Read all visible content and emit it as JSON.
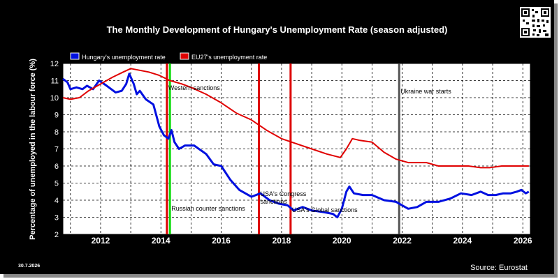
{
  "date_stamp": "30.7.2026",
  "source": "Source: Eurostat",
  "colors": {
    "hungary": "#0010e0",
    "eu27": "#e00000",
    "sanction_red": "#dd0000",
    "sanction_green": "#11dd11",
    "war_gray": "#555555"
  },
  "chart_data": {
    "type": "line",
    "title": "The Monthly Development of Hungary's Unemployment Rate (season adjusted)",
    "ylabel": "Percentage of unemployed in the labour force (%)",
    "xlabel": "",
    "xlim": [
      2010.75,
      2026.25
    ],
    "ylim": [
      2,
      12
    ],
    "grid": true,
    "legend_position": "top-left",
    "x_ticks": [
      "2012",
      "2014",
      "2016",
      "2018",
      "2020",
      "2022",
      "2024",
      "2026"
    ],
    "y_ticks": [
      "2",
      "3",
      "4",
      "5",
      "6",
      "7",
      "8",
      "9",
      "10",
      "11",
      "12"
    ],
    "series": [
      {
        "name": "Hungary's unemployment rate",
        "color": "#0010e0",
        "points": [
          [
            2010.75,
            11.1
          ],
          [
            2010.9,
            10.9
          ],
          [
            2011.0,
            10.5
          ],
          [
            2011.2,
            10.6
          ],
          [
            2011.4,
            10.5
          ],
          [
            2011.55,
            10.7
          ],
          [
            2011.75,
            10.5
          ],
          [
            2011.95,
            11.0
          ],
          [
            2012.2,
            10.7
          ],
          [
            2012.5,
            10.3
          ],
          [
            2012.7,
            10.4
          ],
          [
            2012.85,
            10.8
          ],
          [
            2012.95,
            11.4
          ],
          [
            2013.1,
            10.8
          ],
          [
            2013.2,
            10.2
          ],
          [
            2013.3,
            10.4
          ],
          [
            2013.5,
            9.9
          ],
          [
            2013.75,
            9.6
          ],
          [
            2013.95,
            8.3
          ],
          [
            2014.1,
            7.8
          ],
          [
            2014.25,
            7.6
          ],
          [
            2014.35,
            8.1
          ],
          [
            2014.45,
            7.4
          ],
          [
            2014.6,
            7.0
          ],
          [
            2014.8,
            7.2
          ],
          [
            2015.1,
            7.2
          ],
          [
            2015.5,
            6.7
          ],
          [
            2015.75,
            6.1
          ],
          [
            2016.0,
            6.0
          ],
          [
            2016.3,
            5.2
          ],
          [
            2016.6,
            4.6
          ],
          [
            2017.0,
            4.2
          ],
          [
            2017.3,
            4.4
          ],
          [
            2017.6,
            4.0
          ],
          [
            2017.9,
            3.8
          ],
          [
            2018.2,
            3.7
          ],
          [
            2018.4,
            3.4
          ],
          [
            2018.7,
            3.6
          ],
          [
            2019.0,
            3.4
          ],
          [
            2019.4,
            3.3
          ],
          [
            2019.7,
            3.2
          ],
          [
            2019.85,
            3.0
          ],
          [
            2020.0,
            3.5
          ],
          [
            2020.15,
            4.5
          ],
          [
            2020.25,
            4.8
          ],
          [
            2020.4,
            4.4
          ],
          [
            2020.7,
            4.3
          ],
          [
            2021.0,
            4.3
          ],
          [
            2021.4,
            4.0
          ],
          [
            2021.8,
            3.9
          ],
          [
            2022.0,
            3.7
          ],
          [
            2022.2,
            3.5
          ],
          [
            2022.5,
            3.6
          ],
          [
            2022.8,
            3.9
          ],
          [
            2023.2,
            3.9
          ],
          [
            2023.6,
            4.1
          ],
          [
            2023.95,
            4.4
          ],
          [
            2024.3,
            4.3
          ],
          [
            2024.6,
            4.5
          ],
          [
            2024.85,
            4.3
          ],
          [
            2025.1,
            4.3
          ],
          [
            2025.35,
            4.4
          ],
          [
            2025.6,
            4.4
          ],
          [
            2025.8,
            4.5
          ],
          [
            2025.95,
            4.6
          ],
          [
            2026.1,
            4.4
          ],
          [
            2026.2,
            4.5
          ]
        ]
      },
      {
        "name": "EU27's unemployment rate",
        "color": "#e00000",
        "points": [
          [
            2010.75,
            10.0
          ],
          [
            2011.0,
            9.9
          ],
          [
            2011.3,
            10.0
          ],
          [
            2011.6,
            10.4
          ],
          [
            2012.0,
            10.8
          ],
          [
            2012.4,
            11.2
          ],
          [
            2012.75,
            11.5
          ],
          [
            2013.0,
            11.7
          ],
          [
            2013.3,
            11.6
          ],
          [
            2013.6,
            11.5
          ],
          [
            2013.95,
            11.3
          ],
          [
            2014.3,
            11.0
          ],
          [
            2014.7,
            10.8
          ],
          [
            2015.0,
            10.6
          ],
          [
            2015.5,
            10.2
          ],
          [
            2016.0,
            9.7
          ],
          [
            2016.5,
            9.1
          ],
          [
            2017.0,
            8.7
          ],
          [
            2017.5,
            8.1
          ],
          [
            2018.0,
            7.6
          ],
          [
            2018.5,
            7.3
          ],
          [
            2019.0,
            7.0
          ],
          [
            2019.5,
            6.7
          ],
          [
            2019.95,
            6.5
          ],
          [
            2020.15,
            7.0
          ],
          [
            2020.35,
            7.6
          ],
          [
            2020.6,
            7.5
          ],
          [
            2021.0,
            7.4
          ],
          [
            2021.4,
            6.8
          ],
          [
            2021.8,
            6.4
          ],
          [
            2022.2,
            6.2
          ],
          [
            2022.8,
            6.2
          ],
          [
            2023.2,
            6.0
          ],
          [
            2023.8,
            6.0
          ],
          [
            2024.2,
            6.0
          ],
          [
            2024.6,
            5.9
          ],
          [
            2024.9,
            5.9
          ],
          [
            2025.3,
            6.0
          ],
          [
            2025.8,
            6.0
          ],
          [
            2026.2,
            6.0
          ]
        ]
      }
    ],
    "annotations": [
      {
        "label": "Western sanctions",
        "x": 2014.2,
        "color": "#dd0000"
      },
      {
        "label": "Russian counter sanctions",
        "x": 2014.3,
        "color": "#11dd11"
      },
      {
        "label": "USA's Congress sanctions",
        "x": 2017.25,
        "color": "#dd0000"
      },
      {
        "label": "USA's Global sanctions",
        "x": 2018.3,
        "color": "#dd0000"
      },
      {
        "label": "Ukraine war starts",
        "x": 2021.9,
        "color": "#555555"
      }
    ]
  }
}
